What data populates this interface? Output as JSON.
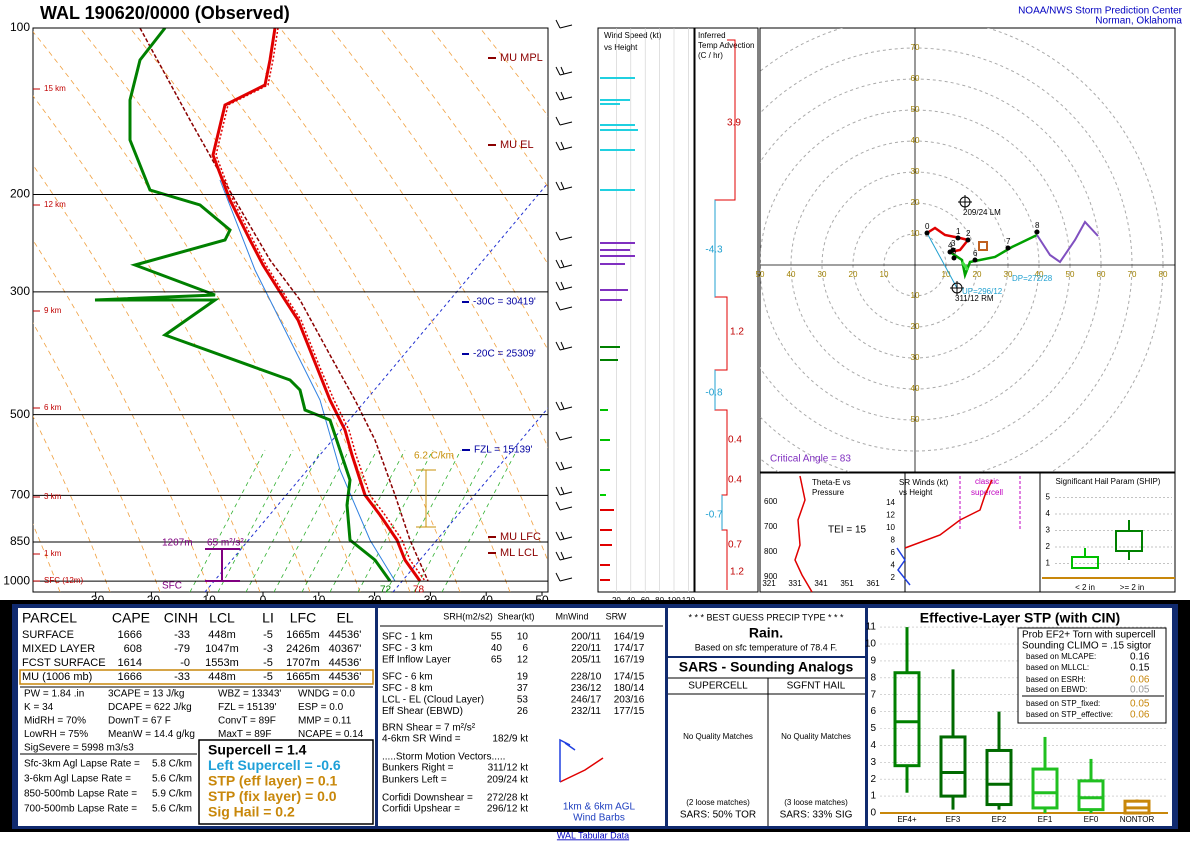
{
  "header": {
    "title": "WAL   190620/0000  (Observed)",
    "org": "NOAA/NWS Storm Prediction Center",
    "location": "Norman, Oklahoma"
  },
  "skewt": {
    "pressure_ticks": [
      100,
      200,
      300,
      500,
      700,
      850,
      1000
    ],
    "temp_ticks": [
      -30,
      -20,
      -10,
      0,
      10,
      20,
      30,
      40,
      50
    ],
    "heights": [
      "15 km",
      "12 km",
      "9 km",
      "6 km",
      "3 km",
      "1 km",
      "SFC (12m)"
    ],
    "levels": {
      "mpl": "MU  MPL",
      "el": "MU  EL",
      "lfc": "MU  LFC",
      "lcl": "ML  LCL"
    },
    "isotherms": {
      "m30": "-30C = 30419'",
      "m20": "-20C = 25309'",
      "fzl": "FZL = 15139'"
    },
    "lapse": "6.2 C/km",
    "srh_depth": "1207m",
    "srh": "65 m²/s²",
    "sfc": "SFC",
    "dewpoint": "72",
    "temp": "78"
  },
  "wind_speed": {
    "title": [
      "Wind Speed (kt)",
      "vs Height"
    ],
    "ticks": [
      20,
      40,
      60,
      80,
      100,
      120
    ]
  },
  "temp_adv": {
    "title": [
      "Inferred",
      "Temp Advection",
      "(C / hr)"
    ],
    "values": [
      "3.9",
      "-4.3",
      "1.2",
      "-0.8",
      "0.4",
      "0.4",
      "-0.7",
      "0.7",
      "1.2"
    ]
  },
  "hodograph": {
    "ticks": [
      10,
      20,
      30,
      40,
      50,
      60,
      70,
      80
    ],
    "lm": "209/24 LM",
    "rm": "311/12 RM",
    "up": "UP=296/12",
    "dp": "DP=272/28",
    "critical_angle": "Critical Angle = 83",
    "points": [
      "0",
      "1",
      "2",
      "3",
      "4",
      "5",
      "6",
      "7",
      "8"
    ]
  },
  "theta_e": {
    "title": [
      "Theta-E vs",
      "Pressure"
    ],
    "xticks": [
      321,
      331,
      341,
      351,
      361
    ],
    "yticks": [
      600,
      700,
      800,
      900
    ],
    "tei": "TEI = 15"
  },
  "sr_winds": {
    "title": [
      "SR Winds (kt)",
      "vs Height"
    ],
    "yticks": [
      2,
      4,
      6,
      8,
      10,
      12,
      14
    ],
    "note": [
      "classic",
      "supercell"
    ]
  },
  "ship": {
    "title": "Significant Hail Param (SHIP)",
    "yticks": [
      1,
      2,
      3,
      4,
      5
    ],
    "categories": [
      "< 2 in",
      ">= 2 in"
    ]
  },
  "parcel": {
    "headers": [
      "PARCEL",
      "CAPE",
      "CINH",
      "LCL",
      "LI",
      "LFC",
      "EL"
    ],
    "rows": [
      [
        "SURFACE",
        "1666",
        "-33",
        "448m",
        "-5",
        "1665m",
        "44536'"
      ],
      [
        "MIXED LAYER",
        "608",
        "-79",
        "1047m",
        "-3",
        "2426m",
        "40367'"
      ],
      [
        "FCST SURFACE",
        "1614",
        "-0",
        "1553m",
        "-5",
        "1707m",
        "44536'"
      ],
      [
        "MU  (1006 mb)",
        "1666",
        "-33",
        "448m",
        "-5",
        "1665m",
        "44536'"
      ]
    ]
  },
  "indices": [
    [
      "PW = 1.84 .in",
      "3CAPE = 13 J/kg",
      "WBZ = 13343'",
      "WNDG = 0.0"
    ],
    [
      "K = 34",
      "DCAPE = 622 J/kg",
      "FZL = 15139'",
      "ESP = 0.0"
    ],
    [
      "MidRH = 70%",
      "DownT = 67 F",
      "ConvT = 89F",
      "MMP = 0.11"
    ],
    [
      "LowRH = 75%",
      "MeanW = 14.4 g/kg",
      "MaxT = 89F",
      "NCAPE = 0.14"
    ],
    [
      "SigSevere = 5998 m3/s3"
    ]
  ],
  "lapse_rates": [
    [
      "Sfc-3km Agl Lapse Rate =",
      "5.8 C/km"
    ],
    [
      "3-6km Agl Lapse Rate =",
      "5.6 C/km"
    ],
    [
      "850-500mb Lapse Rate =",
      "5.9 C/km"
    ],
    [
      "700-500mb Lapse Rate =",
      "5.6 C/km"
    ]
  ],
  "composites": [
    {
      "text": "Supercell = 1.4",
      "color": "#000000"
    },
    {
      "text": "Left Supercell = -0.6",
      "color": "#1ea0d8"
    },
    {
      "text": "STP (eff layer) = 0.1",
      "color": "#c8870a"
    },
    {
      "text": "STP (fix layer) = 0.0",
      "color": "#c8870a"
    },
    {
      "text": "Sig Hail = 0.2",
      "color": "#c8870a"
    }
  ],
  "shear": {
    "headers": [
      "SRH(m2/s2)",
      "Shear(kt)",
      "MnWind",
      "SRW"
    ],
    "rows": [
      [
        "SFC - 1 km",
        "55",
        "10",
        "200/11",
        "164/19"
      ],
      [
        "SFC - 3 km",
        "40",
        "6",
        "220/11",
        "174/17"
      ],
      [
        "Eff Inflow Layer",
        "65",
        "12",
        "205/11",
        "167/19"
      ],
      [
        "SFC - 6 km",
        "19",
        "228/10",
        "174/15"
      ],
      [
        "SFC - 8 km",
        "37",
        "236/12",
        "180/14"
      ],
      [
        "LCL - EL (Cloud Layer)",
        "53",
        "246/17",
        "203/16"
      ],
      [
        "Eff Shear (EBWD)",
        "26",
        "232/11",
        "177/15"
      ]
    ],
    "brn": "BRN Shear = 7 m²/s²",
    "sr_wind": [
      "4-6km SR Wind =",
      "182/9 kt"
    ],
    "storm_title": ".....Storm Motion Vectors.....",
    "motion": [
      [
        "Bunkers Right =",
        "311/12 kt"
      ],
      [
        "Bunkers Left =",
        "209/24 kt"
      ],
      [
        "Corfidi Downshear =",
        "272/28 kt"
      ],
      [
        "Corfidi Upshear =",
        "296/12 kt"
      ]
    ],
    "barbs": [
      "1km & 6km AGL",
      "Wind Barbs"
    ]
  },
  "precip": {
    "title": "* * * BEST GUESS PRECIP TYPE * * *",
    "type": "Rain.",
    "note": "Based on sfc temperature of 78.4 F."
  },
  "sars": {
    "title": "SARS - Sounding Analogs",
    "columns": [
      "SUPERCELL",
      "SGFNT HAIL"
    ],
    "matches": [
      "No Quality Matches",
      "No Quality Matches"
    ],
    "loose": [
      "(2 loose matches)",
      "(3 loose matches)"
    ],
    "result": [
      "SARS:  50% TOR",
      "SARS:  33% SIG"
    ]
  },
  "stp": {
    "title": "Effective-Layer STP (with CIN)",
    "yticks": [
      0,
      1,
      2,
      3,
      4,
      5,
      6,
      7,
      8,
      9,
      10,
      11
    ],
    "categories": [
      "EF4+",
      "EF3",
      "EF2",
      "EF1",
      "EF0",
      "NONTOR"
    ],
    "boxes": [
      {
        "low": 1.2,
        "q1": 2.8,
        "median": 5.4,
        "q3": 8.3,
        "high": 11
      },
      {
        "low": 0.2,
        "q1": 1,
        "median": 2.4,
        "q3": 4.5,
        "high": 8.5
      },
      {
        "low": 0.2,
        "q1": 0.5,
        "median": 1.7,
        "q3": 3.7,
        "high": 6
      },
      {
        "low": 0,
        "q1": 0.3,
        "median": 1.2,
        "q3": 2.6,
        "high": 4.5
      },
      {
        "low": 0,
        "q1": 0.2,
        "median": 0.9,
        "q3": 1.9,
        "high": 3.2
      },
      {
        "low": 0,
        "q1": 0,
        "median": 0.3,
        "q3": 0.7,
        "high": 0.8
      }
    ],
    "legend": [
      "Prob EF2+ Torn with supercell",
      "Sounding CLIMO = .15 sigtor"
    ],
    "probs": [
      [
        "based on MLCAPE:",
        "0.16"
      ],
      [
        "based on MLLCL:",
        "0.15"
      ],
      [
        "based on ESRH:",
        "0.06"
      ],
      [
        "based on EBWD:",
        "0.05"
      ],
      [
        "based on STP_fixed:",
        "0.05"
      ],
      [
        "based on STP_effective:",
        "0.06"
      ]
    ]
  },
  "footer": "WAL Tabular Data"
}
